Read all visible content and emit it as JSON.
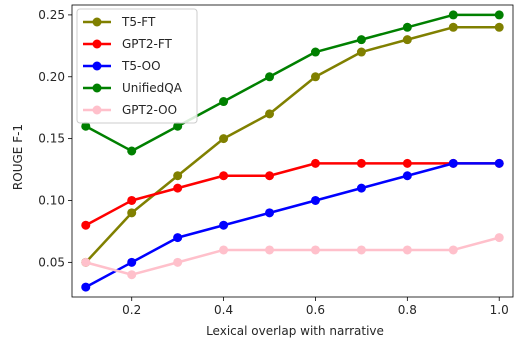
{
  "chart_data": {
    "type": "line",
    "xlabel": "Lexical overlap with narrative",
    "ylabel": "ROUGE F-1",
    "xlim": [
      0.07,
      1.03
    ],
    "ylim": [
      0.022,
      0.258
    ],
    "x_ticks": [
      0.2,
      0.4,
      0.6,
      0.8,
      1.0
    ],
    "x_tick_labels": [
      "0.2",
      "0.4",
      "0.6",
      "0.8",
      "1.0"
    ],
    "y_ticks": [
      0.05,
      0.1,
      0.15,
      0.2,
      0.25
    ],
    "y_tick_labels": [
      "0.05",
      "0.10",
      "0.15",
      "0.20",
      "0.25"
    ],
    "grid": false,
    "legend_position": "top-left",
    "x": [
      0.1,
      0.2,
      0.3,
      0.4,
      0.5,
      0.6,
      0.7,
      0.8,
      0.9,
      1.0
    ],
    "series": [
      {
        "name": "T5-FT",
        "color": "#808000",
        "values": [
          0.05,
          0.09,
          0.12,
          0.15,
          0.17,
          0.2,
          0.22,
          0.23,
          0.24,
          0.24
        ]
      },
      {
        "name": "GPT2-FT",
        "color": "#ff0000",
        "values": [
          0.08,
          0.1,
          0.11,
          0.12,
          0.12,
          0.13,
          0.13,
          0.13,
          0.13,
          0.13
        ]
      },
      {
        "name": "T5-OO",
        "color": "#0000ff",
        "values": [
          0.03,
          0.05,
          0.07,
          0.08,
          0.09,
          0.1,
          0.11,
          0.12,
          0.13,
          0.13
        ]
      },
      {
        "name": "UnifiedQA",
        "color": "#008000",
        "values": [
          0.16,
          0.14,
          0.16,
          0.18,
          0.2,
          0.22,
          0.23,
          0.24,
          0.25,
          0.25
        ]
      },
      {
        "name": "GPT2-OO",
        "color": "#ffc0cb",
        "values": [
          0.05,
          0.04,
          0.05,
          0.06,
          0.06,
          0.06,
          0.06,
          0.06,
          0.06,
          0.07
        ]
      }
    ]
  }
}
